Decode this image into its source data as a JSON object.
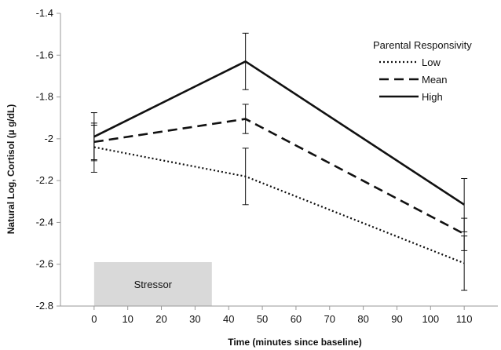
{
  "chart_data": {
    "type": "line",
    "xlabel": "Time (minutes since baseline)",
    "ylabel": "Natural Log, Cortisol (µ g/dL)",
    "xlim": [
      -10,
      120
    ],
    "ylim": [
      -2.8,
      -1.4
    ],
    "x_ticks": [
      0,
      10,
      20,
      30,
      40,
      50,
      60,
      70,
      80,
      90,
      100,
      110
    ],
    "x_tick_labels": [
      "0",
      "10",
      "20",
      "30",
      "40",
      "50",
      "60",
      "70",
      "80",
      "90",
      "100",
      "110"
    ],
    "y_ticks": [
      -2.8,
      -2.6,
      -2.4,
      -2.2,
      -2,
      -1.8,
      -1.6,
      -1.4
    ],
    "y_tick_labels": [
      "-2.8",
      "-2.6",
      "-2.4",
      "-2.2",
      "-2",
      "-1.8",
      "-1.6",
      "-1.4"
    ],
    "grid": false,
    "x": [
      0,
      45,
      110
    ],
    "legend": {
      "title": "Parental Responsivity",
      "position": "top-right"
    },
    "series": [
      {
        "name": "Low",
        "style": "dotted",
        "values": [
          -2.04,
          -2.18,
          -2.595
        ],
        "error_low": [
          -2.16,
          -2.315,
          -2.725
        ],
        "error_high": [
          -1.925,
          -2.045,
          -2.465
        ]
      },
      {
        "name": "Mean",
        "style": "dashed",
        "values": [
          -2.015,
          -1.905,
          -2.455
        ],
        "error_low": [
          -2.1,
          -1.975,
          -2.535
        ],
        "error_high": [
          -1.935,
          -1.835,
          -2.38
        ]
      },
      {
        "name": "High",
        "style": "solid",
        "values": [
          -1.99,
          -1.63,
          -2.315
        ],
        "error_low": [
          -2.105,
          -1.765,
          -2.445
        ],
        "error_high": [
          -1.875,
          -1.495,
          -2.19
        ]
      }
    ],
    "annotations": [
      {
        "label": "Stressor",
        "type": "shaded_band",
        "x_start": 0,
        "x_end": 35,
        "y_start": -2.8,
        "y_end": -2.59,
        "color": "#d9d9d9"
      }
    ],
    "line_color": "#111111",
    "axis_color": "#999999"
  }
}
